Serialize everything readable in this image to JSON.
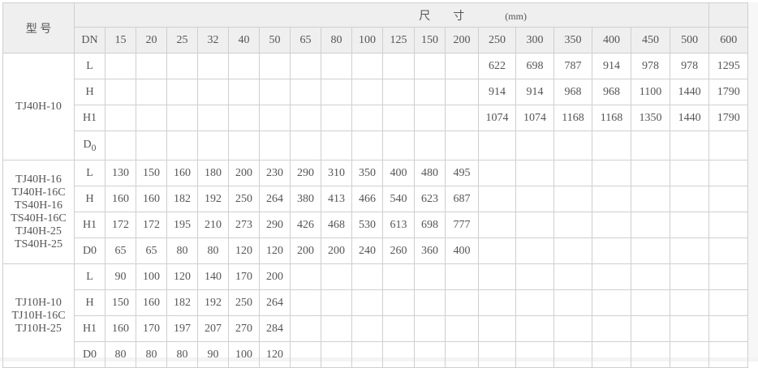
{
  "header": {
    "model_label": "型 号",
    "dimension_label": "尺　　寸",
    "unit_label": "(mm)",
    "dn_label": "DN",
    "dn_values": [
      "15",
      "20",
      "25",
      "32",
      "40",
      "50",
      "65",
      "80",
      "100",
      "125",
      "150",
      "200",
      "250",
      "300",
      "350",
      "400",
      "450",
      "500",
      "600"
    ]
  },
  "groups": [
    {
      "models": [
        "TJ40H-10"
      ],
      "rows": [
        {
          "param": "L",
          "values": [
            "",
            "",
            "",
            "",
            "",
            "",
            "",
            "",
            "",
            "",
            "",
            "",
            "622",
            "698",
            "787",
            "914",
            "978",
            "978",
            "1295"
          ]
        },
        {
          "param": "H",
          "values": [
            "",
            "",
            "",
            "",
            "",
            "",
            "",
            "",
            "",
            "",
            "",
            "",
            "914",
            "914",
            "968",
            "968",
            "1100",
            "1440",
            "1790"
          ]
        },
        {
          "param": "H1",
          "values": [
            "",
            "",
            "",
            "",
            "",
            "",
            "",
            "",
            "",
            "",
            "",
            "",
            "1074",
            "1074",
            "1168",
            "1168",
            "1350",
            "1440",
            "1790"
          ]
        },
        {
          "param": "D0",
          "param_sub": true,
          "values": [
            "",
            "",
            "",
            "",
            "",
            "",
            "",
            "",
            "",
            "",
            "",
            "",
            "",
            "",
            "",
            "",
            "",
            "",
            ""
          ]
        }
      ]
    },
    {
      "models": [
        "TJ40H-16",
        "TJ40H-16C",
        "TS40H-16",
        "TS40H-16C",
        "TJ40H-25",
        "TS40H-25"
      ],
      "rows": [
        {
          "param": "L",
          "values": [
            "130",
            "150",
            "160",
            "180",
            "200",
            "230",
            "290",
            "310",
            "350",
            "400",
            "480",
            "495",
            "",
            "",
            "",
            "",
            "",
            "",
            ""
          ]
        },
        {
          "param": "H",
          "values": [
            "160",
            "160",
            "182",
            "192",
            "250",
            "264",
            "380",
            "413",
            "466",
            "540",
            "623",
            "687",
            "",
            "",
            "",
            "",
            "",
            "",
            ""
          ]
        },
        {
          "param": "H1",
          "values": [
            "172",
            "172",
            "195",
            "210",
            "273",
            "290",
            "426",
            "468",
            "530",
            "613",
            "698",
            "777",
            "",
            "",
            "",
            "",
            "",
            "",
            ""
          ]
        },
        {
          "param": "D0",
          "values": [
            "65",
            "65",
            "80",
            "80",
            "120",
            "120",
            "200",
            "200",
            "240",
            "260",
            "360",
            "400",
            "",
            "",
            "",
            "",
            "",
            "",
            ""
          ]
        }
      ]
    },
    {
      "models": [
        "TJ10H-10",
        "TJ10H-16C",
        "TJ10H-25"
      ],
      "rows": [
        {
          "param": "L",
          "values": [
            "90",
            "100",
            "120",
            "140",
            "170",
            "200",
            "",
            "",
            "",
            "",
            "",
            "",
            "",
            "",
            "",
            "",
            "",
            "",
            ""
          ]
        },
        {
          "param": "H",
          "values": [
            "150",
            "160",
            "182",
            "192",
            "250",
            "264",
            "",
            "",
            "",
            "",
            "",
            "",
            "",
            "",
            "",
            "",
            "",
            "",
            ""
          ]
        },
        {
          "param": "H1",
          "values": [
            "160",
            "170",
            "197",
            "207",
            "270",
            "284",
            "",
            "",
            "",
            "",
            "",
            "",
            "",
            "",
            "",
            "",
            "",
            "",
            ""
          ]
        },
        {
          "param": "D0",
          "values": [
            "80",
            "80",
            "80",
            "90",
            "100",
            "120",
            "",
            "",
            "",
            "",
            "",
            "",
            "",
            "",
            "",
            "",
            "",
            "",
            ""
          ]
        }
      ]
    }
  ]
}
